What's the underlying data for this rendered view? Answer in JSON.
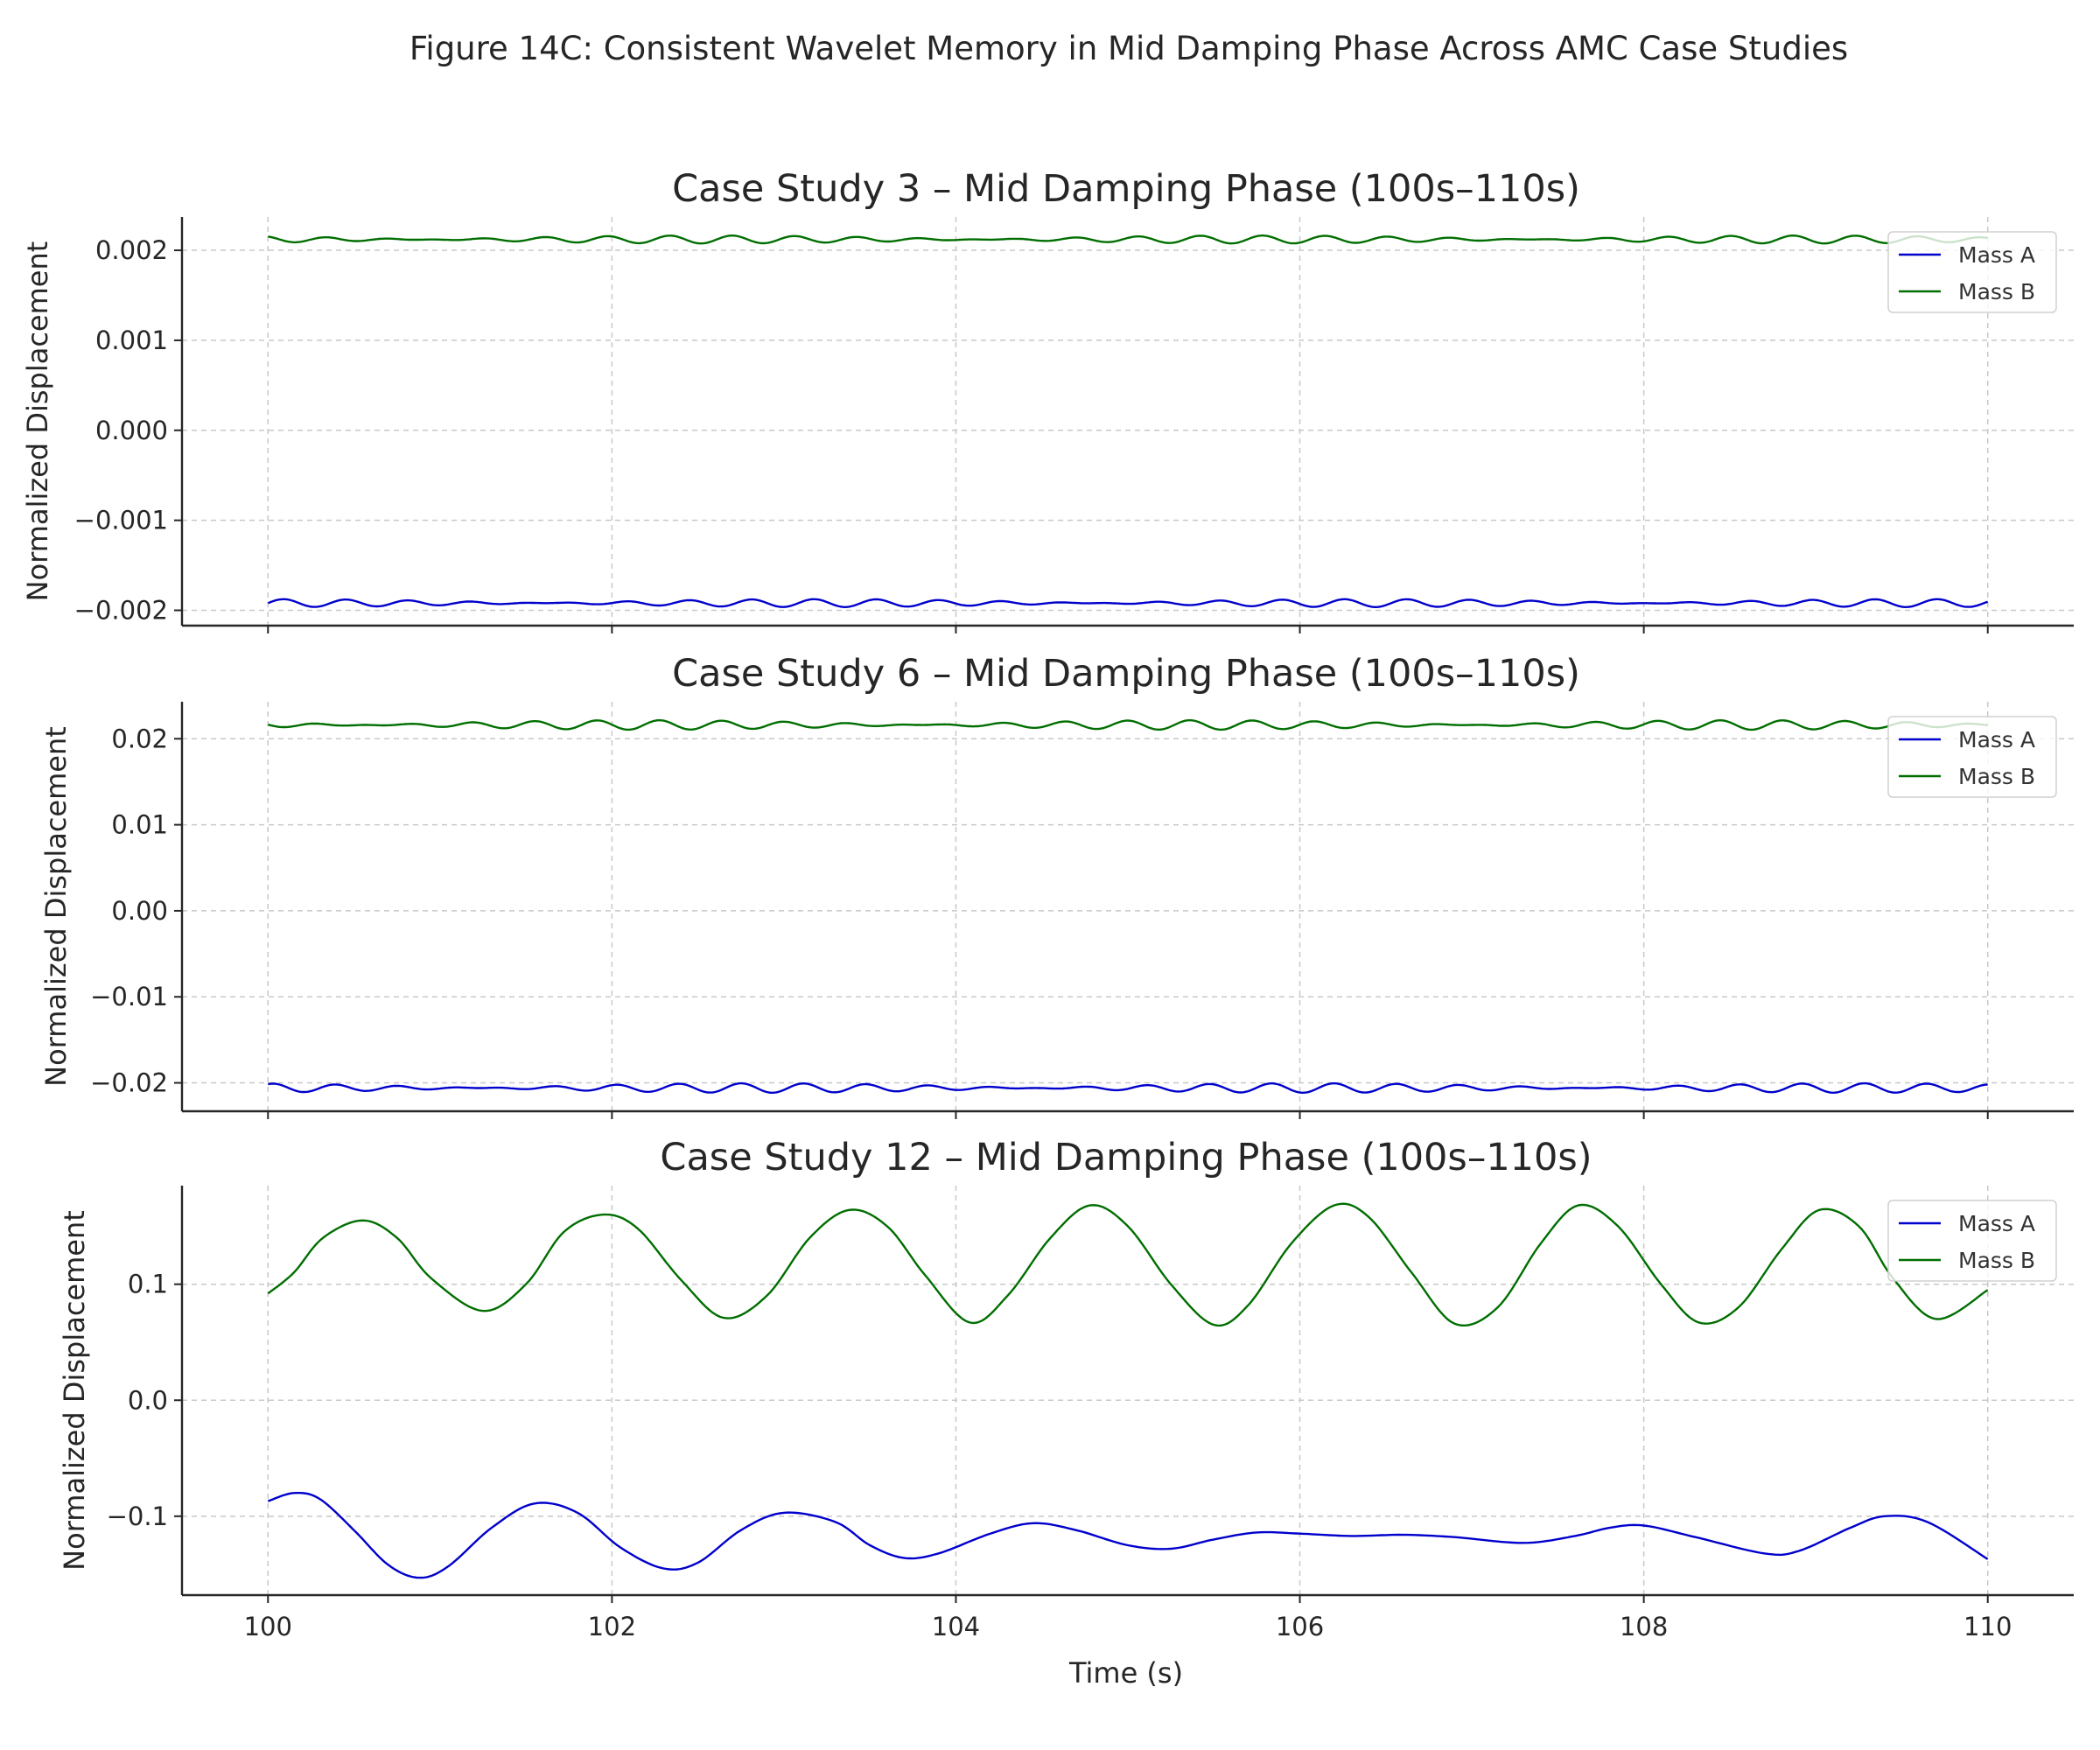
{
  "figure": {
    "title": "Figure 14C: Consistent Wavelet Memory in Mid Damping Phase Across AMC Case Studies"
  },
  "colors": {
    "mass_a": "#0000cc",
    "mass_b": "#006e00"
  },
  "chart_data": [
    {
      "type": "line",
      "title": "Case Study 3 – Mid Damping Phase (100s–110s)",
      "xlabel": "",
      "ylabel": "Normalized Displacement",
      "xlim": [
        99.5,
        110.5
      ],
      "ylim": [
        -0.00217,
        0.00237
      ],
      "xticks": [
        100,
        102,
        104,
        106,
        108,
        110
      ],
      "xtick_labels": [
        "",
        "",
        "",
        "",
        "",
        ""
      ],
      "yticks": [
        -0.002,
        -0.001,
        0.0,
        0.001,
        0.002
      ],
      "ytick_labels": [
        "−0.002",
        "−0.001",
        "0.000",
        "0.001",
        "0.002"
      ],
      "grid": true,
      "legend": {
        "position": "top-right",
        "entries": [
          "Mass A",
          "Mass B"
        ]
      },
      "series": [
        {
          "name": "Mass A",
          "color": "#0000cc",
          "mean": -0.00192,
          "amplitude": 4e-05,
          "frequency_hz": 2.6,
          "pattern": "beating"
        },
        {
          "name": "Mass B",
          "color": "#006e00",
          "mean": 0.00212,
          "amplitude": 4e-05,
          "frequency_hz": 2.6,
          "pattern": "beating"
        }
      ]
    },
    {
      "type": "line",
      "title": "Case Study 6 – Mid Damping Phase (100s–110s)",
      "xlabel": "",
      "ylabel": "Normalized Displacement",
      "xlim": [
        99.5,
        110.5
      ],
      "ylim": [
        -0.0233,
        0.0243
      ],
      "xticks": [
        100,
        102,
        104,
        106,
        108,
        110
      ],
      "xtick_labels": [
        "",
        "",
        "",
        "",
        "",
        ""
      ],
      "yticks": [
        -0.02,
        -0.01,
        0.0,
        0.01,
        0.02
      ],
      "ytick_labels": [
        "−0.02",
        "−0.01",
        "0.00",
        "0.01",
        "0.02"
      ],
      "grid": true,
      "legend": {
        "position": "top-right",
        "entries": [
          "Mass A",
          "Mass B"
        ]
      },
      "series": [
        {
          "name": "Mass A",
          "color": "#0000cc",
          "mean": -0.0206,
          "amplitude": 0.0005,
          "frequency_hz": 2.6,
          "pattern": "beating"
        },
        {
          "name": "Mass B",
          "color": "#006e00",
          "mean": 0.0216,
          "amplitude": 0.0005,
          "frequency_hz": 2.6,
          "pattern": "beating"
        }
      ]
    },
    {
      "type": "line",
      "title": "Case Study 12 – Mid Damping Phase (100s–110s)",
      "xlabel": "Time (s)",
      "ylabel": "Normalized Displacement",
      "xlim": [
        99.5,
        110.5
      ],
      "ylim": [
        -0.168,
        0.185
      ],
      "xticks": [
        100,
        102,
        104,
        106,
        108,
        110
      ],
      "xtick_labels": [
        "100",
        "102",
        "104",
        "106",
        "108",
        "110"
      ],
      "yticks": [
        -0.1,
        0.0,
        0.1
      ],
      "ytick_labels": [
        "−0.1",
        "0.0",
        "0.1"
      ],
      "grid": true,
      "legend": {
        "position": "top-right",
        "entries": [
          "Mass A",
          "Mass B"
        ]
      },
      "series": [
        {
          "name": "Mass A",
          "color": "#0000cc",
          "x": [
            100.0,
            100.15,
            100.3,
            100.5,
            100.7,
            100.88,
            101.05,
            101.3,
            101.55,
            101.8,
            102.05,
            102.3,
            102.5,
            102.75,
            103.0,
            103.3,
            103.5,
            103.7,
            103.9,
            104.2,
            104.45,
            104.7,
            105.0,
            105.25,
            105.5,
            105.75,
            106.0,
            106.3,
            106.6,
            106.9,
            107.3,
            107.6,
            107.8,
            108.0,
            108.3,
            108.7,
            108.9,
            109.2,
            109.4,
            109.65,
            110.0
          ],
          "y": [
            -0.087,
            -0.08,
            -0.085,
            -0.112,
            -0.142,
            -0.153,
            -0.143,
            -0.11,
            -0.089,
            -0.097,
            -0.127,
            -0.145,
            -0.14,
            -0.112,
            -0.097,
            -0.105,
            -0.125,
            -0.136,
            -0.132,
            -0.115,
            -0.106,
            -0.112,
            -0.125,
            -0.128,
            -0.12,
            -0.114,
            -0.115,
            -0.117,
            -0.116,
            -0.118,
            -0.123,
            -0.117,
            -0.11,
            -0.108,
            -0.118,
            -0.132,
            -0.13,
            -0.11,
            -0.1,
            -0.105,
            -0.137
          ]
        },
        {
          "name": "Mass B",
          "color": "#006e00",
          "x": [
            100.0,
            100.15,
            100.32,
            100.55,
            100.75,
            100.95,
            101.25,
            101.5,
            101.72,
            101.95,
            102.15,
            102.4,
            102.65,
            102.9,
            103.15,
            103.38,
            103.6,
            103.82,
            104.08,
            104.3,
            104.55,
            104.78,
            105.0,
            105.25,
            105.5,
            105.7,
            105.95,
            106.2,
            106.4,
            106.65,
            106.9,
            107.15,
            107.4,
            107.62,
            107.85,
            108.1,
            108.32,
            108.55,
            108.8,
            109.02,
            109.25,
            109.45,
            109.7,
            110.0
          ],
          "y": [
            0.092,
            0.11,
            0.14,
            0.155,
            0.14,
            0.105,
            0.077,
            0.1,
            0.145,
            0.16,
            0.148,
            0.104,
            0.071,
            0.09,
            0.14,
            0.164,
            0.15,
            0.108,
            0.067,
            0.09,
            0.14,
            0.168,
            0.15,
            0.1,
            0.065,
            0.082,
            0.135,
            0.168,
            0.158,
            0.11,
            0.066,
            0.08,
            0.135,
            0.168,
            0.15,
            0.1,
            0.067,
            0.08,
            0.13,
            0.164,
            0.15,
            0.105,
            0.07,
            0.095
          ]
        }
      ]
    }
  ]
}
